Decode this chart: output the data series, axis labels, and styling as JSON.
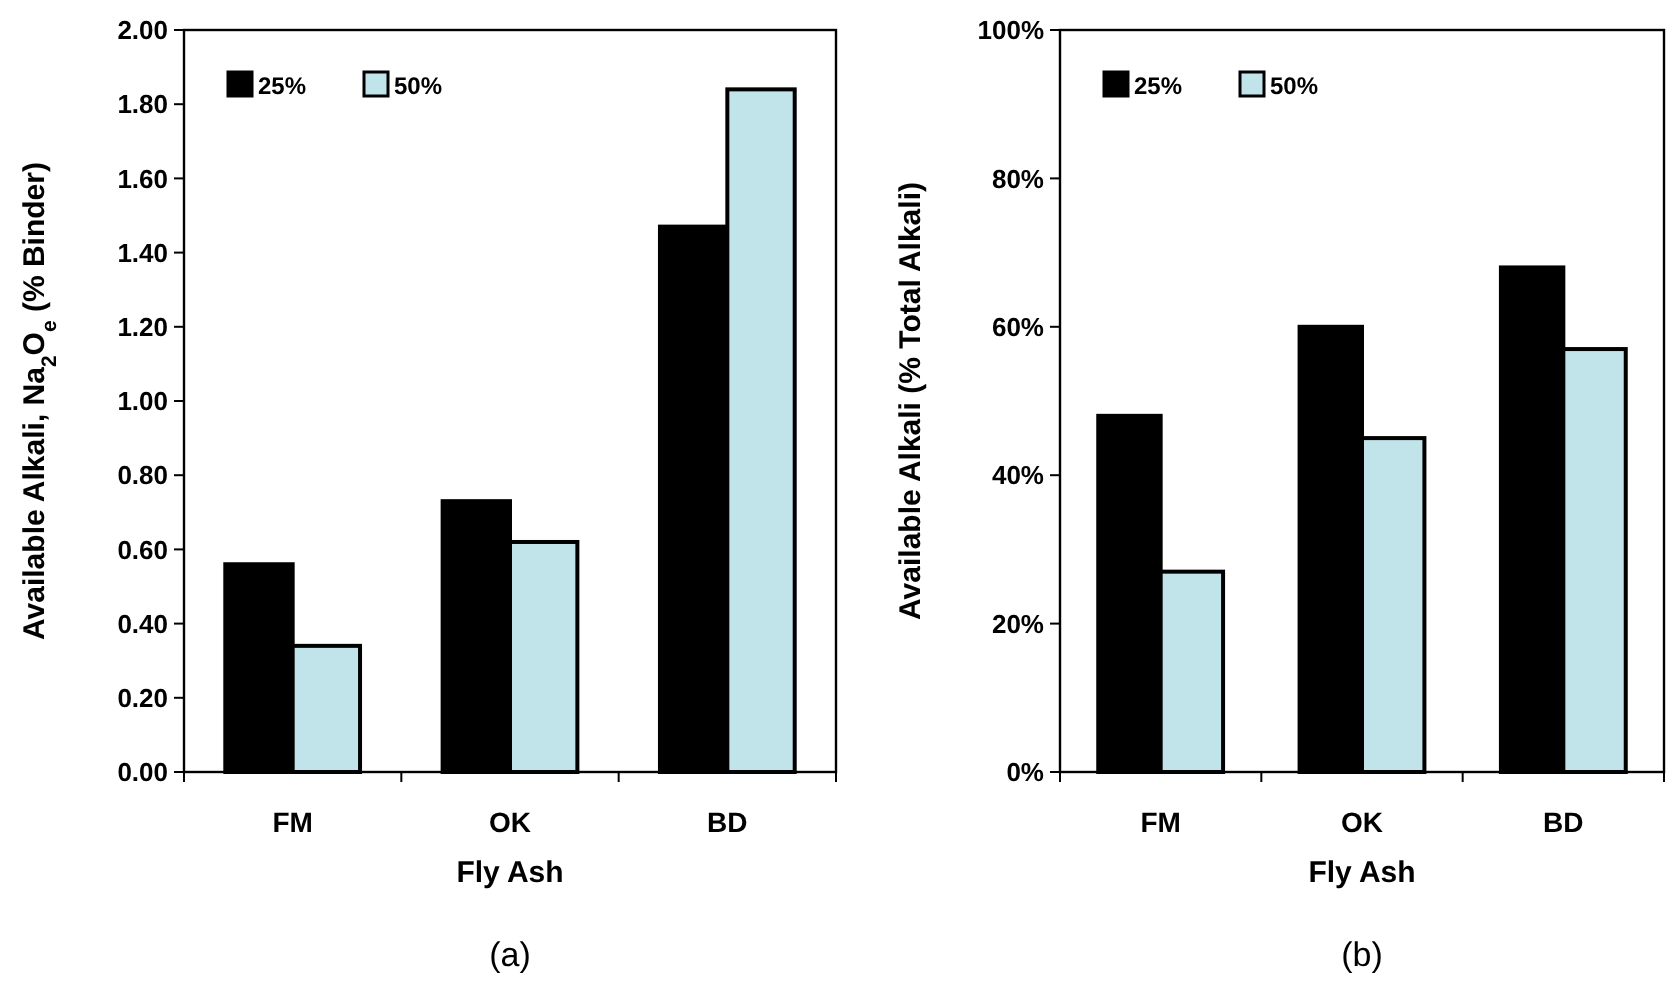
{
  "chart_data": [
    {
      "type": "bar",
      "categories": [
        "FM",
        "OK",
        "BD"
      ],
      "xlabel": "Fly Ash",
      "ylabel": "Available Alkali, Na$_{2}$O$_{e}$ (% Binder)",
      "series": [
        {
          "name": "25%",
          "color": "#000000",
          "values": [
            0.56,
            0.73,
            1.47
          ]
        },
        {
          "name": "50%",
          "color": "#c0e4ea",
          "values": [
            0.34,
            0.62,
            1.84
          ]
        }
      ],
      "ylim": [
        0,
        2
      ],
      "yticks": [
        {
          "value": 0,
          "label": "0.00"
        },
        {
          "value": 0.2,
          "label": "0.20"
        },
        {
          "value": 0.4,
          "label": "0.40"
        },
        {
          "value": 0.6,
          "label": "0.60"
        },
        {
          "value": 0.8,
          "label": "0.80"
        },
        {
          "value": 1,
          "label": "1.00"
        },
        {
          "value": 1.2,
          "label": "1.20"
        },
        {
          "value": 1.4,
          "label": "1.40"
        },
        {
          "value": 1.6,
          "label": "1.60"
        },
        {
          "value": 1.8,
          "label": "1.80"
        },
        {
          "value": 2,
          "label": "2.00"
        }
      ],
      "legend": "top left",
      "grid": false,
      "annotations": [
        "(a)"
      ]
    },
    {
      "type": "bar",
      "categories": [
        "FM",
        "OK",
        "BD"
      ],
      "xlabel": "Fly Ash",
      "ylabel": "Available Alkali (% Total Alkali)",
      "series": [
        {
          "name": "25%",
          "color": "#000000",
          "values": [
            48,
            60,
            68
          ]
        },
        {
          "name": "50%",
          "color": "#c0e4ea",
          "values": [
            27,
            45,
            57
          ]
        }
      ],
      "ylim": [
        0,
        100
      ],
      "yticks": [
        {
          "value": 0,
          "label": "0%"
        },
        {
          "value": 20,
          "label": "20%"
        },
        {
          "value": 40,
          "label": "40%"
        },
        {
          "value": 60,
          "label": "60%"
        },
        {
          "value": 80,
          "label": "80%"
        },
        {
          "value": 100,
          "label": "100%"
        }
      ],
      "legend": "top left",
      "grid": false,
      "annotations": [
        "(b)"
      ]
    }
  ]
}
